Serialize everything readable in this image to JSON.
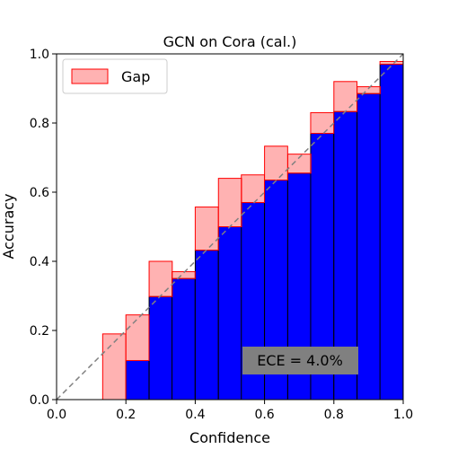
{
  "chart_data": {
    "type": "bar",
    "title": "GCN on Cora (cal.)",
    "xlabel": "Confidence",
    "ylabel": "Accuracy",
    "xlim": [
      0.0,
      1.0
    ],
    "ylim": [
      0.0,
      1.0
    ],
    "xticks": [
      "0.0",
      "0.2",
      "0.4",
      "0.6",
      "0.8",
      "1.0"
    ],
    "yticks": [
      "0.0",
      "0.2",
      "0.4",
      "0.6",
      "0.8",
      "1.0"
    ],
    "bin_width": 0.0667,
    "bin_starts": [
      0.133,
      0.2,
      0.267,
      0.333,
      0.4,
      0.467,
      0.533,
      0.6,
      0.667,
      0.733,
      0.8,
      0.867,
      0.933
    ],
    "accuracy": [
      0.0,
      0.113,
      0.298,
      0.35,
      0.432,
      0.5,
      0.57,
      0.635,
      0.655,
      0.77,
      0.833,
      0.885,
      0.97
    ],
    "confidence": [
      0.19,
      0.245,
      0.4,
      0.37,
      0.557,
      0.64,
      0.65,
      0.733,
      0.71,
      0.83,
      0.92,
      0.905,
      0.978
    ],
    "legend": {
      "label": "Gap",
      "position": "top-left"
    },
    "annotation": "ECE = 4.0%",
    "colors": {
      "bar": "#0000ff",
      "bar_edge": "#000000",
      "gap_fill": "#ff0000",
      "gap_alpha": 0.3,
      "gap_edge": "#ff0000",
      "diagonal": "#808080",
      "ece_box": "#808080"
    },
    "grid": false
  }
}
